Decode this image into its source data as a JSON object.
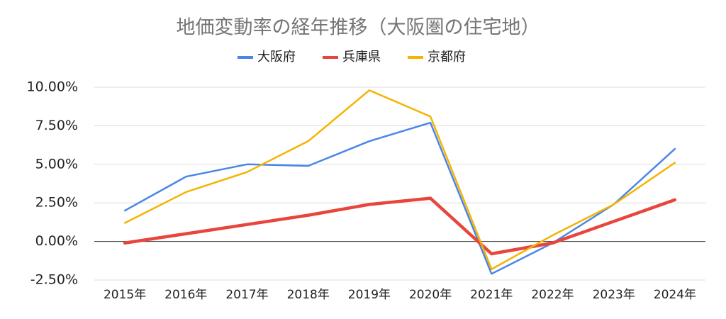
{
  "chart_data": {
    "type": "line",
    "title": "地価変動率の経年推移（大阪圏の住宅地）",
    "categories": [
      "2015年",
      "2016年",
      "2017年",
      "2018年",
      "2019年",
      "2020年",
      "2021年",
      "2022年",
      "2023年",
      "2024年"
    ],
    "series": [
      {
        "name": "大阪府",
        "color": "#4a86e8",
        "line_width": 2.5,
        "values": [
          2.0,
          4.2,
          5.0,
          4.9,
          6.5,
          7.7,
          -2.1,
          -0.1,
          2.4,
          6.0
        ]
      },
      {
        "name": "兵庫県",
        "color": "#e8453c",
        "line_width": 4.5,
        "values": [
          -0.1,
          0.5,
          1.1,
          1.7,
          2.4,
          2.8,
          -0.8,
          -0.1,
          1.3,
          2.7
        ]
      },
      {
        "name": "京都府",
        "color": "#f4b400",
        "line_width": 2.5,
        "values": [
          1.2,
          3.2,
          4.5,
          6.5,
          9.8,
          8.1,
          -1.8,
          0.4,
          2.4,
          5.1
        ]
      }
    ],
    "ylim": [
      -2.5,
      10
    ],
    "yticks": [
      {
        "value": -2.5,
        "label": "-2.50%"
      },
      {
        "value": 0,
        "label": "0.00%"
      },
      {
        "value": 2.5,
        "label": "2.50%"
      },
      {
        "value": 5,
        "label": "5.00%"
      },
      {
        "value": 7.5,
        "label": "7.50%"
      },
      {
        "value": 10,
        "label": "10.00%"
      }
    ],
    "grid": true
  }
}
